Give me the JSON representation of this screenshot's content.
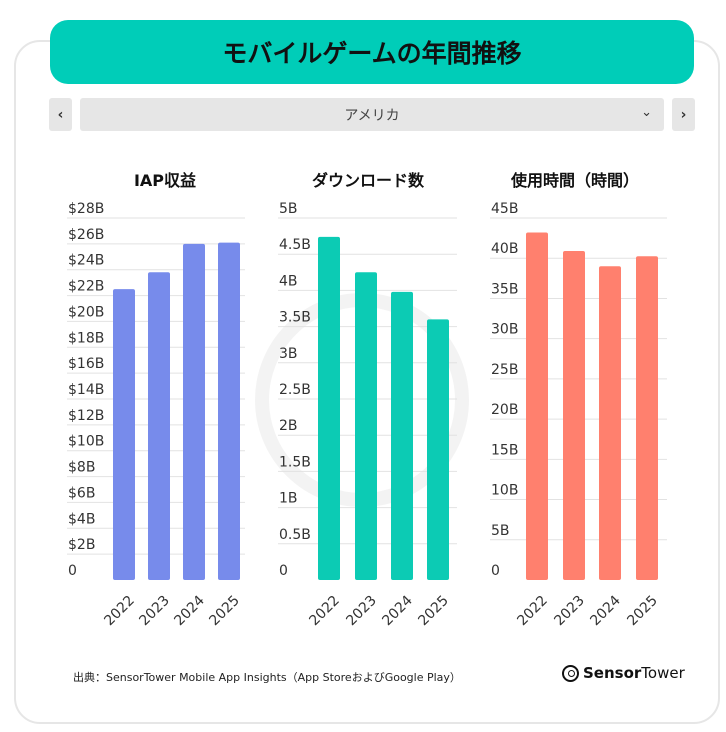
{
  "title": "モバイルゲームの年間推移",
  "selector": {
    "value": "アメリカ",
    "prev_icon": "chevron-left-icon",
    "next_icon": "chevron-right-icon",
    "dropdown_icon": "chevron-down-icon"
  },
  "footer": {
    "source": "出典：SensorTower Mobile App Insights（App StoreおよびGoogle Play）",
    "logo_bold": "Sensor",
    "logo_light": "Tower"
  },
  "chart_data": [
    {
      "type": "bar",
      "title": "IAP収益",
      "categories": [
        "2022",
        "2023",
        "2024",
        "2025"
      ],
      "values": [
        22.5,
        23.8,
        26.0,
        26.1
      ],
      "ylim": [
        0,
        28
      ],
      "yticks": [
        "0",
        "$2B",
        "$4B",
        "$6B",
        "$8B",
        "$10B",
        "$12B",
        "$14B",
        "$16B",
        "$18B",
        "$20B",
        "$22B",
        "$24B",
        "$26B",
        "$28B"
      ],
      "color": "#778beb",
      "grid": true
    },
    {
      "type": "bar",
      "title": "ダウンロード数",
      "categories": [
        "2022",
        "2023",
        "2024",
        "2025"
      ],
      "values": [
        4.74,
        4.25,
        3.98,
        3.6
      ],
      "ylim": [
        0,
        5
      ],
      "yticks": [
        "0",
        "0.5B",
        "1B",
        "1.5B",
        "2B",
        "2.5B",
        "3B",
        "3.5B",
        "4B",
        "4.5B",
        "5B"
      ],
      "color": "#0ccbb4",
      "grid": true
    },
    {
      "type": "bar",
      "title": "使用時間（時間）",
      "categories": [
        "2022",
        "2023",
        "2024",
        "2025"
      ],
      "values": [
        43.2,
        40.9,
        39.0,
        40.25
      ],
      "ylim": [
        0,
        45
      ],
      "yticks": [
        "0",
        "5B",
        "10B",
        "15B",
        "20B",
        "25B",
        "30B",
        "35B",
        "40B",
        "45B"
      ],
      "color": "#ff806e",
      "grid": true
    }
  ]
}
